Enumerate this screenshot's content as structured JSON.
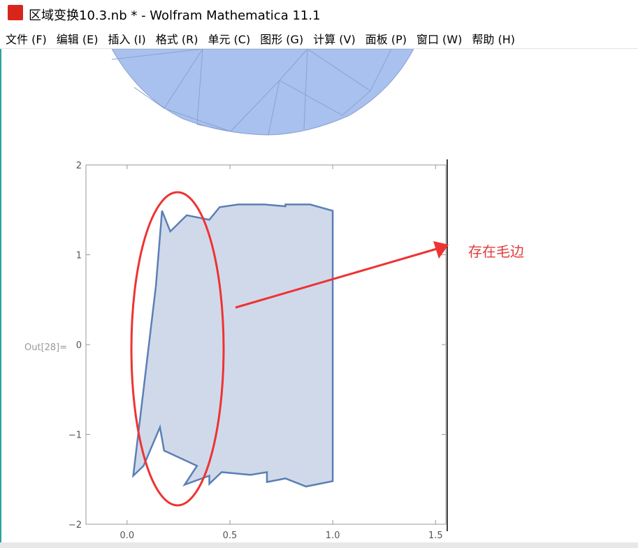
{
  "window": {
    "title": "区域变换10.3.nb * - Wolfram Mathematica 11.1"
  },
  "menu": [
    "文件 (F)",
    "编辑 (E)",
    "插入 (I)",
    "格式 (R)",
    "单元 (C)",
    "图形 (G)",
    "计算 (V)",
    "面板 (P)",
    "窗口 (W)",
    "帮助 (H)"
  ],
  "cell": {
    "label": "Out[28]="
  },
  "annotation": "存在毛边",
  "chart_data": {
    "type": "polygon",
    "color": "#5b7fb5",
    "fill": "#d0d9ea",
    "x": [
      0.17,
      0.21,
      0.29,
      0.4,
      0.45,
      0.54,
      0.67,
      0.77,
      0.77,
      0.89,
      1.0,
      1.0,
      0.87,
      0.77,
      0.68,
      0.68,
      0.6,
      0.46,
      0.4,
      0.4,
      0.28,
      0.34,
      0.18,
      0.16,
      0.08,
      0.03,
      0.14
    ],
    "y": [
      1.49,
      1.26,
      1.44,
      1.39,
      1.53,
      1.56,
      1.56,
      1.54,
      1.56,
      1.56,
      1.49,
      -1.52,
      -1.58,
      -1.49,
      -1.53,
      -1.42,
      -1.45,
      -1.42,
      -1.55,
      -1.46,
      -1.56,
      -1.35,
      -1.18,
      -0.92,
      -1.35,
      -1.46,
      0.65
    ],
    "xlim": [
      -0.2,
      1.55
    ],
    "ylim": [
      -2,
      2
    ],
    "xticks": [
      {
        "value": 0,
        "label": "0.0"
      },
      {
        "value": 0.5,
        "label": "0.5"
      },
      {
        "value": 1,
        "label": "1.0"
      },
      {
        "value": 1.5,
        "label": "1.5"
      }
    ],
    "yticks": [
      {
        "value": -2,
        "label": "−2"
      },
      {
        "value": -1,
        "label": "−1"
      },
      0,
      1,
      2
    ]
  }
}
